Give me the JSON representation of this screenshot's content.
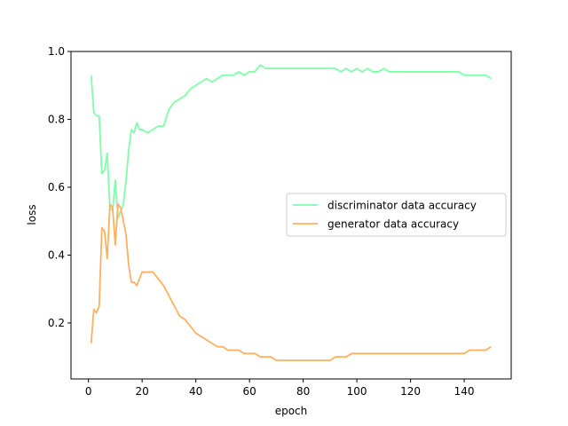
{
  "chart_data": {
    "type": "line",
    "title": "",
    "xlabel": "epoch",
    "ylabel": "loss",
    "xlim": [
      -6.5,
      157.5
    ],
    "ylim": [
      0.035,
      1.0
    ],
    "xticks": [
      0,
      20,
      40,
      60,
      80,
      100,
      120,
      140
    ],
    "yticks": [
      0.2,
      0.4,
      0.6,
      0.8,
      1.0
    ],
    "ytick_labels": [
      "0.2",
      "0.4",
      "0.6",
      "0.8",
      "1.0"
    ],
    "grid": false,
    "legend_position": "center-right",
    "series": [
      {
        "name": "discriminator data accuracy",
        "color": "#7fffaa",
        "x": [
          1,
          2,
          3,
          4,
          5,
          6,
          7,
          8,
          9,
          10,
          11,
          12,
          13,
          14,
          15,
          16,
          17,
          18,
          19,
          20,
          22,
          24,
          26,
          28,
          30,
          32,
          34,
          36,
          38,
          40,
          42,
          44,
          46,
          48,
          50,
          52,
          54,
          56,
          58,
          60,
          62,
          64,
          66,
          68,
          70,
          72,
          74,
          76,
          78,
          80,
          82,
          84,
          86,
          88,
          90,
          92,
          94,
          96,
          98,
          100,
          102,
          104,
          106,
          108,
          110,
          112,
          114,
          116,
          118,
          120,
          122,
          124,
          126,
          128,
          130,
          132,
          134,
          136,
          138,
          140,
          142,
          144,
          146,
          148,
          150
        ],
        "y": [
          0.93,
          0.82,
          0.81,
          0.81,
          0.64,
          0.65,
          0.7,
          0.54,
          0.53,
          0.62,
          0.51,
          0.53,
          0.55,
          0.62,
          0.71,
          0.77,
          0.76,
          0.79,
          0.77,
          0.77,
          0.76,
          0.77,
          0.78,
          0.78,
          0.83,
          0.85,
          0.86,
          0.87,
          0.89,
          0.9,
          0.91,
          0.92,
          0.91,
          0.92,
          0.93,
          0.93,
          0.93,
          0.94,
          0.93,
          0.94,
          0.94,
          0.96,
          0.95,
          0.95,
          0.95,
          0.95,
          0.95,
          0.95,
          0.95,
          0.95,
          0.95,
          0.95,
          0.95,
          0.95,
          0.95,
          0.95,
          0.94,
          0.95,
          0.94,
          0.95,
          0.94,
          0.95,
          0.94,
          0.94,
          0.95,
          0.94,
          0.94,
          0.94,
          0.94,
          0.94,
          0.94,
          0.94,
          0.94,
          0.94,
          0.94,
          0.94,
          0.94,
          0.94,
          0.94,
          0.93,
          0.93,
          0.93,
          0.93,
          0.93,
          0.92
        ]
      },
      {
        "name": "generator data accuracy",
        "color": "#ffb060",
        "x": [
          1,
          2,
          3,
          4,
          5,
          6,
          7,
          8,
          9,
          10,
          11,
          12,
          13,
          14,
          15,
          16,
          17,
          18,
          19,
          20,
          22,
          24,
          26,
          28,
          30,
          32,
          34,
          36,
          38,
          40,
          42,
          44,
          46,
          48,
          50,
          52,
          54,
          56,
          58,
          60,
          62,
          64,
          66,
          68,
          70,
          72,
          74,
          76,
          78,
          80,
          82,
          84,
          86,
          88,
          90,
          92,
          94,
          96,
          98,
          100,
          102,
          104,
          106,
          108,
          110,
          112,
          114,
          116,
          118,
          120,
          122,
          124,
          126,
          128,
          130,
          132,
          134,
          136,
          138,
          140,
          142,
          144,
          146,
          148,
          150
        ],
        "y": [
          0.14,
          0.24,
          0.23,
          0.25,
          0.48,
          0.47,
          0.39,
          0.55,
          0.54,
          0.43,
          0.55,
          0.54,
          0.5,
          0.46,
          0.37,
          0.32,
          0.32,
          0.31,
          0.33,
          0.35,
          0.35,
          0.35,
          0.33,
          0.31,
          0.28,
          0.25,
          0.22,
          0.21,
          0.19,
          0.17,
          0.16,
          0.15,
          0.14,
          0.13,
          0.13,
          0.12,
          0.12,
          0.12,
          0.11,
          0.11,
          0.11,
          0.1,
          0.1,
          0.1,
          0.09,
          0.09,
          0.09,
          0.09,
          0.09,
          0.09,
          0.09,
          0.09,
          0.09,
          0.09,
          0.09,
          0.1,
          0.1,
          0.1,
          0.11,
          0.11,
          0.11,
          0.11,
          0.11,
          0.11,
          0.11,
          0.11,
          0.11,
          0.11,
          0.11,
          0.11,
          0.11,
          0.11,
          0.11,
          0.11,
          0.11,
          0.11,
          0.11,
          0.11,
          0.11,
          0.11,
          0.12,
          0.12,
          0.12,
          0.12,
          0.13
        ]
      }
    ]
  }
}
